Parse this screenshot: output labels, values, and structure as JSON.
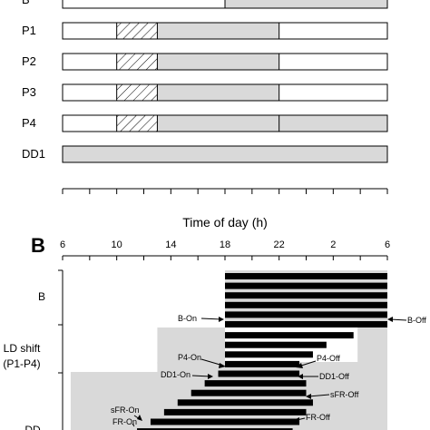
{
  "panel_a": {
    "rows": [
      {
        "label": "B",
        "light": [
          [
            6,
            18
          ]
        ],
        "hatched": [],
        "shaded": [
          [
            18,
            30
          ]
        ]
      },
      {
        "label": "P1",
        "light": [
          [
            6,
            10
          ],
          [
            22,
            30
          ]
        ],
        "hatched": [
          [
            10,
            13
          ]
        ],
        "shaded": [
          [
            13,
            22
          ]
        ]
      },
      {
        "label": "P2",
        "light": [
          [
            6,
            10
          ],
          [
            22,
            30
          ]
        ],
        "hatched": [
          [
            10,
            13
          ]
        ],
        "shaded": [
          [
            13,
            22
          ]
        ]
      },
      {
        "label": "P3",
        "light": [
          [
            6,
            10
          ],
          [
            22,
            30
          ]
        ],
        "hatched": [
          [
            10,
            13
          ]
        ],
        "shaded": [
          [
            13,
            22
          ]
        ]
      },
      {
        "label": "P4",
        "light": [
          [
            6,
            10
          ],
          [
            22,
            30
          ]
        ],
        "hatched": [
          [
            10,
            13
          ]
        ],
        "shaded": [
          [
            13,
            30
          ]
        ]
      },
      {
        "label": "DD1",
        "light": [],
        "hatched": [],
        "shaded": [
          [
            6,
            30
          ]
        ]
      }
    ],
    "axis_title": "Time of day (h)"
  },
  "panel_b": {
    "letter": "B",
    "ticks": [
      "6",
      "10",
      "14",
      "18",
      "22",
      "2",
      "6"
    ],
    "groups": [
      "B",
      "LD shift",
      "(P1-P4)",
      "DD"
    ],
    "bars": [
      [
        18,
        30
      ],
      [
        18,
        30
      ],
      [
        18,
        30
      ],
      [
        18,
        30
      ],
      [
        18,
        30
      ],
      [
        18,
        30
      ],
      [
        18,
        27.5
      ],
      [
        18,
        25.5
      ],
      [
        18,
        24.5
      ],
      [
        18,
        23.5
      ],
      [
        17.5,
        23.5
      ],
      [
        16.5,
        24
      ],
      [
        15.5,
        24
      ],
      [
        14.5,
        24.5
      ],
      [
        13.5,
        24
      ],
      [
        12.5,
        23.5
      ],
      [
        11.5,
        23
      ]
    ],
    "annotations": {
      "b_on": "B-On",
      "b_off": "B-Off",
      "p4_on": "P4-On",
      "p4_off": "P4-Off",
      "dd1_on": "DD1-On",
      "dd1_off": "DD1-Off",
      "sfr_off": "sFR-Off",
      "sfr_on": "sFR-On",
      "fr_on": "FR-On",
      "fr_off": "FR-Off"
    }
  },
  "colors": {
    "shade": "#d9d9d9",
    "bar": "#000000",
    "light": "#ffffff"
  }
}
